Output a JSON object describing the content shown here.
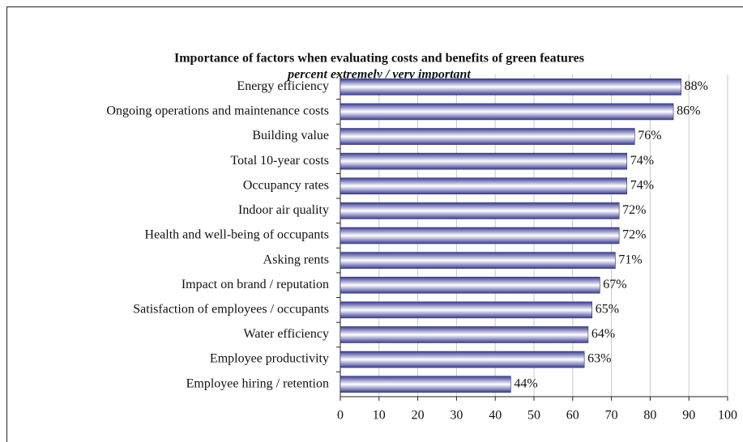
{
  "chart_data": {
    "type": "hbar",
    "title": "Importance of factors when evaluating costs and benefits of green features",
    "subtitle": "percent extremely / very important",
    "categories": [
      "Energy efficiency",
      "Ongoing operations and maintenance costs",
      "Building value",
      "Total 10-year costs",
      "Occupancy rates",
      "Indoor air quality",
      "Health and well-being of occupants",
      "Asking rents",
      "Impact on brand / reputation",
      "Satisfaction of employees / occupants",
      "Water efficiency",
      "Employee productivity",
      "Employee hiring / retention"
    ],
    "values": [
      88,
      86,
      76,
      74,
      74,
      72,
      72,
      71,
      67,
      65,
      64,
      63,
      44
    ],
    "value_labels": [
      "88%",
      "86%",
      "76%",
      "74%",
      "74%",
      "72%",
      "72%",
      "71%",
      "67%",
      "65%",
      "64%",
      "63%",
      "44%"
    ],
    "color": "#3a3d94",
    "xlim": [
      0,
      100
    ],
    "xticks": [
      0,
      10,
      20,
      30,
      40,
      50,
      60,
      70,
      80,
      90,
      100
    ],
    "grid": true
  }
}
